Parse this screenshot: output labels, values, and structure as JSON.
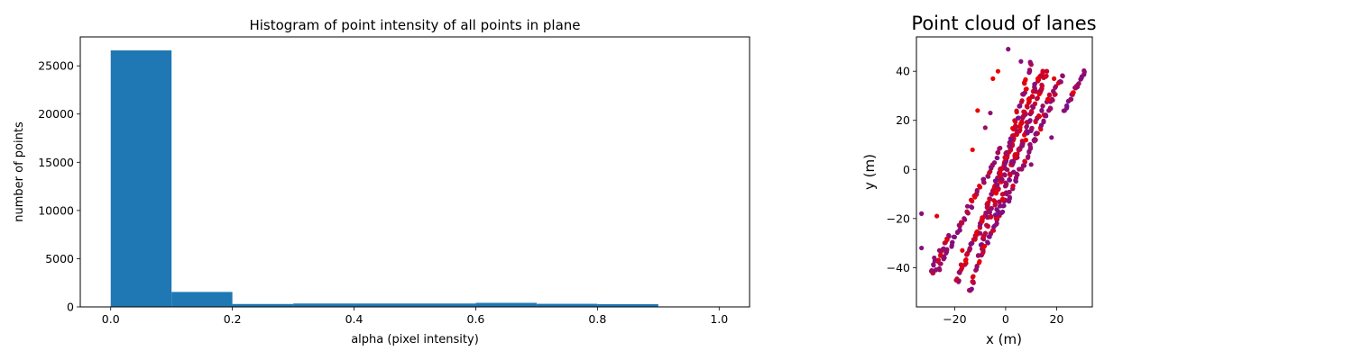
{
  "chart_data": [
    {
      "type": "bar",
      "title": "Histogram of point intensity of all points in plane",
      "xlabel": "alpha (pixel intensity)",
      "ylabel": "number of points",
      "bin_edges": [
        0.0,
        0.1,
        0.2,
        0.3,
        0.4,
        0.5,
        0.6,
        0.7,
        0.8,
        0.9,
        1.0
      ],
      "values": [
        26600,
        1550,
        300,
        350,
        350,
        350,
        420,
        320,
        280,
        50
      ],
      "xlim": [
        -0.05,
        1.05
      ],
      "ylim": [
        0,
        28000
      ],
      "xticks": [
        0.0,
        0.2,
        0.4,
        0.6,
        0.8,
        1.0
      ],
      "xtick_labels": [
        "0.0",
        "0.2",
        "0.4",
        "0.6",
        "0.8",
        "1.0"
      ],
      "yticks": [
        0,
        5000,
        10000,
        15000,
        20000,
        25000
      ],
      "ytick_labels": [
        "0",
        "5000",
        "10000",
        "15000",
        "20000",
        "25000"
      ],
      "bar_color": "#1f77b4",
      "grid": false
    },
    {
      "type": "scatter",
      "title": "Point cloud of lanes",
      "xlabel": "x (m)",
      "ylabel": "y (m)",
      "xlim": [
        -35,
        34
      ],
      "ylim": [
        -56,
        54
      ],
      "xticks": [
        -20,
        0,
        20
      ],
      "xtick_labels": [
        "−20",
        "0",
        "20"
      ],
      "yticks": [
        -40,
        -20,
        0,
        20,
        40
      ],
      "ytick_labels": [
        "−40",
        "−20",
        "0",
        "20",
        "40"
      ],
      "colors": {
        "low": "#7b0f8a",
        "high": "#ee0000"
      },
      "grid": false,
      "lanes": [
        {
          "start": [
            -28,
            -43
          ],
          "end": [
            -2,
            8
          ],
          "n": 34,
          "jitter": 1.2,
          "color_mix": 0.35
        },
        {
          "start": [
            -19,
            -45
          ],
          "end": [
            14,
            40
          ],
          "n": 80,
          "jitter": 1.1,
          "color_mix": 0.7
        },
        {
          "start": [
            -14,
            -50
          ],
          "end": [
            10,
            44
          ],
          "n": 55,
          "jitter": 1.3,
          "color_mix": 0.45
        },
        {
          "start": [
            -9,
            -34
          ],
          "end": [
            19,
            30
          ],
          "n": 45,
          "jitter": 1.1,
          "color_mix": 0.25
        },
        {
          "start": [
            -4,
            -20
          ],
          "end": [
            16,
            40
          ],
          "n": 38,
          "jitter": 1.1,
          "color_mix": 0.4
        },
        {
          "start": [
            -2,
            -5
          ],
          "end": [
            22,
            38
          ],
          "n": 28,
          "jitter": 1.0,
          "color_mix": 0.3
        },
        {
          "start": [
            23,
            24
          ],
          "end": [
            31,
            40
          ],
          "n": 14,
          "jitter": 0.7,
          "color_mix": 0.05
        },
        {
          "start": [
            -29,
            -41
          ],
          "end": [
            -22,
            -27
          ],
          "n": 10,
          "jitter": 0.9,
          "color_mix": 0.3
        }
      ],
      "outliers": [
        {
          "x": -33,
          "y": -18,
          "c": 0.1
        },
        {
          "x": -33,
          "y": -32,
          "c": 0.1
        },
        {
          "x": -28,
          "y": -36,
          "c": 0.2
        },
        {
          "x": -26,
          "y": -33,
          "c": 0.2
        },
        {
          "x": -27,
          "y": -19,
          "c": 0.9
        },
        {
          "x": -13,
          "y": 8,
          "c": 1.0
        },
        {
          "x": -11,
          "y": 24,
          "c": 1.0
        },
        {
          "x": -8,
          "y": 17,
          "c": 0.3
        },
        {
          "x": -5,
          "y": 37,
          "c": 1.0
        },
        {
          "x": -3,
          "y": 40,
          "c": 1.0
        },
        {
          "x": 1,
          "y": 49,
          "c": 0.1
        },
        {
          "x": 6,
          "y": 44,
          "c": 0.1
        },
        {
          "x": 18,
          "y": 13,
          "c": 0.1
        },
        {
          "x": 19,
          "y": 37,
          "c": 0.9
        },
        {
          "x": 10,
          "y": 2,
          "c": 0.1
        },
        {
          "x": -17,
          "y": -33,
          "c": 0.9
        },
        {
          "x": -10,
          "y": -26,
          "c": 0.2
        },
        {
          "x": -15,
          "y": -15,
          "c": 0.2
        },
        {
          "x": -6,
          "y": 23,
          "c": 0.2
        },
        {
          "x": -3,
          "y": 7,
          "c": 0.3
        }
      ]
    }
  ]
}
